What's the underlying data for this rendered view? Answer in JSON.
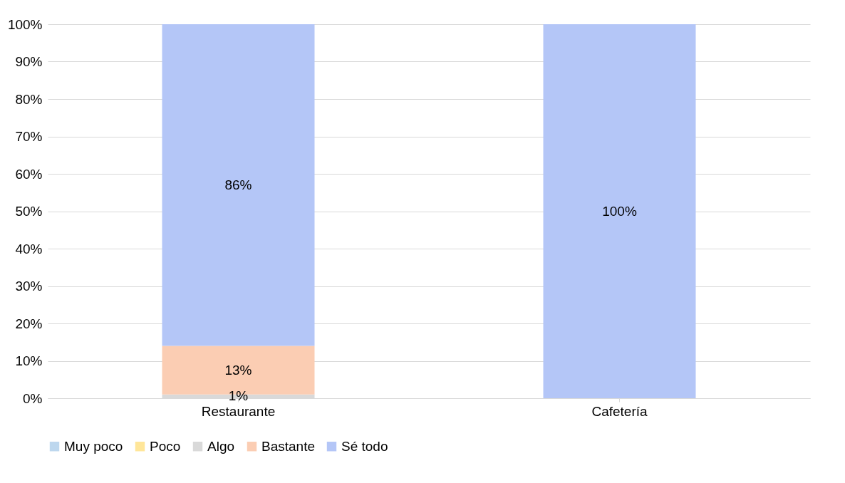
{
  "chart_data": {
    "type": "bar",
    "stacked": true,
    "categories": [
      "Restaurante",
      "Cafetería"
    ],
    "series": [
      {
        "name": "Muy poco",
        "color": "#bdd7ee",
        "values": [
          0,
          0
        ],
        "value_labels": [
          null,
          null
        ]
      },
      {
        "name": "Poco",
        "color": "#ffe699",
        "values": [
          0,
          0
        ],
        "value_labels": [
          null,
          null
        ]
      },
      {
        "name": "Algo",
        "color": "#d9d9d9",
        "values": [
          1,
          0
        ],
        "value_labels": [
          "1%",
          null
        ]
      },
      {
        "name": "Bastante",
        "color": "#fbcdb3",
        "values": [
          13,
          0
        ],
        "value_labels": [
          "13%",
          null
        ]
      },
      {
        "name": "Sé todo",
        "color": "#b4c6f7",
        "values": [
          86,
          100
        ],
        "value_labels": [
          "86%",
          "100%"
        ]
      }
    ],
    "ylim": [
      0,
      100
    ],
    "yticks": [
      {
        "value": 0,
        "label": "0%"
      },
      {
        "value": 10,
        "label": "10%"
      },
      {
        "value": 20,
        "label": "20%"
      },
      {
        "value": 30,
        "label": "30%"
      },
      {
        "value": 40,
        "label": "40%"
      },
      {
        "value": 50,
        "label": "50%"
      },
      {
        "value": 60,
        "label": "60%"
      },
      {
        "value": 70,
        "label": "70%"
      },
      {
        "value": 80,
        "label": "80%"
      },
      {
        "value": 90,
        "label": "90%"
      },
      {
        "value": 100,
        "label": "100%"
      }
    ],
    "grid": "y",
    "legend": "bottom"
  }
}
